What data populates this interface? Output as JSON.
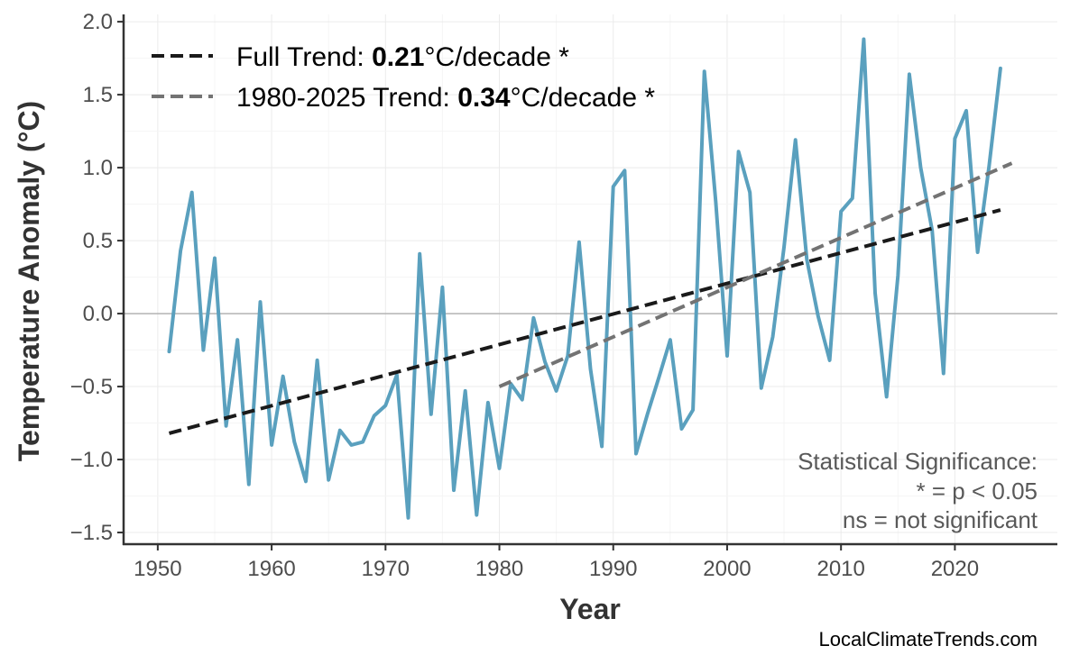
{
  "chart_data": {
    "type": "line",
    "xlabel": "Year",
    "ylabel": "Temperature Anomaly (°C)",
    "xlim": [
      1947,
      2029
    ],
    "ylim": [
      -1.58,
      2.05
    ],
    "x_ticks": [
      1950,
      1960,
      1970,
      1980,
      1990,
      2000,
      2010,
      2020
    ],
    "y_ticks": [
      -1.5,
      -1.0,
      -0.5,
      0.0,
      0.5,
      1.0,
      1.5,
      2.0
    ],
    "y_tick_labels": [
      "−1.5",
      "−1.0",
      "−0.5",
      "0.0",
      "0.5",
      "1.0",
      "1.5",
      "2.0"
    ],
    "grid": true,
    "zero_line": true,
    "series": [
      {
        "kind": "observed",
        "color": "#5aa0be",
        "x": [
          1951,
          1952,
          1953,
          1954,
          1955,
          1956,
          1957,
          1958,
          1959,
          1960,
          1961,
          1962,
          1963,
          1964,
          1965,
          1966,
          1967,
          1968,
          1969,
          1970,
          1971,
          1972,
          1973,
          1974,
          1975,
          1976,
          1977,
          1978,
          1979,
          1980,
          1981,
          1982,
          1983,
          1984,
          1985,
          1986,
          1987,
          1988,
          1989,
          1990,
          1991,
          1992,
          1993,
          1994,
          1995,
          1996,
          1997,
          1998,
          1999,
          2000,
          2001,
          2002,
          2003,
          2004,
          2005,
          2006,
          2007,
          2008,
          2009,
          2010,
          2011,
          2012,
          2013,
          2014,
          2015,
          2016,
          2017,
          2018,
          2019,
          2020,
          2021,
          2022,
          2023,
          2024
        ],
        "values": [
          -0.26,
          0.43,
          0.83,
          -0.25,
          0.38,
          -0.77,
          -0.18,
          -1.17,
          0.08,
          -0.9,
          -0.43,
          -0.88,
          -1.15,
          -0.32,
          -1.14,
          -0.8,
          -0.9,
          -0.88,
          -0.7,
          -0.63,
          -0.42,
          -1.4,
          0.41,
          -0.69,
          0.18,
          -1.21,
          -0.53,
          -1.38,
          -0.61,
          -1.06,
          -0.48,
          -0.59,
          -0.03,
          -0.33,
          -0.53,
          -0.29,
          0.49,
          -0.38,
          -0.91,
          0.87,
          0.98,
          -0.96,
          -0.69,
          -0.44,
          -0.18,
          -0.79,
          -0.66,
          1.66,
          0.77,
          -0.29,
          1.11,
          0.83,
          -0.51,
          -0.16,
          0.46,
          1.19,
          0.37,
          -0.02,
          -0.32,
          0.7,
          0.79,
          1.88,
          0.14,
          -0.57,
          0.26,
          1.64,
          1.0,
          0.57,
          -0.41,
          1.2,
          1.39,
          0.42,
          1.01,
          1.68
        ]
      },
      {
        "kind": "full-trend",
        "color": "#1a1a1a",
        "x": [
          1951,
          2024
        ],
        "values": [
          -0.82,
          0.71
        ]
      },
      {
        "kind": "recent-trend",
        "color": "#737373",
        "x": [
          1980,
          2025
        ],
        "values": [
          -0.5,
          1.03
        ]
      }
    ],
    "legend": {
      "placement": "top-left",
      "entries": [
        {
          "prefix": "Full Trend: ",
          "value": "0.21",
          "suffix": "°C/decade *"
        },
        {
          "prefix": "1980-2025 Trend: ",
          "value": "0.34",
          "suffix": "°C/decade *"
        }
      ]
    },
    "annotation": {
      "placement": "bottom-right",
      "lines": [
        "Statistical Significance:",
        "* = p < 0.05",
        "ns = not significant"
      ]
    },
    "credit": "LocalClimateTrends.com"
  },
  "colors": {
    "observed": "#5aa0be",
    "full_trend": "#1a1a1a",
    "recent_trend": "#737373",
    "grid": "#ebebeb",
    "zero_line": "#b3b3b3",
    "axis": "#333333"
  }
}
